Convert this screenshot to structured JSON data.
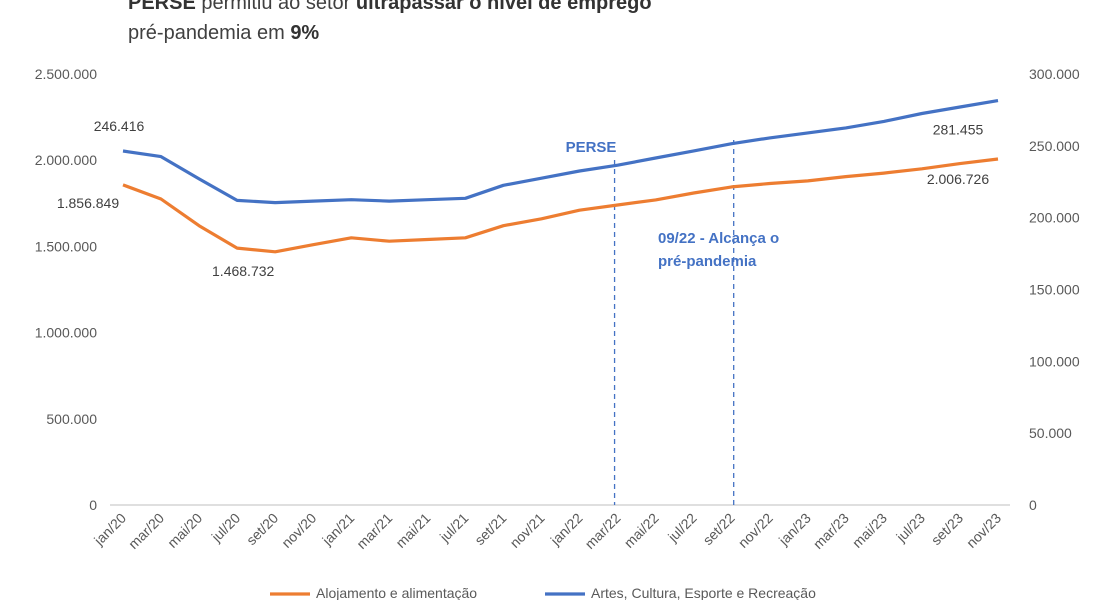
{
  "title": {
    "line1_bold1": "PERSE",
    "line1_text": " permitiu ao setor ",
    "line1_bold2": "ultrapassar o nível de emprego",
    "line2_text": "pré-pandemia  em ",
    "line2_bold": "9%"
  },
  "chart_data": {
    "type": "line",
    "x": [
      "jan/20",
      "mar/20",
      "mai/20",
      "jul/20",
      "set/20",
      "nov/20",
      "jan/21",
      "mar/21",
      "mai/21",
      "jul/21",
      "set/21",
      "nov/21",
      "jan/22",
      "mar/22",
      "mai/22",
      "jul/22",
      "set/22",
      "nov/22",
      "jan/23",
      "mar/23",
      "mai/23",
      "jul/23",
      "set/23",
      "nov/23"
    ],
    "y_left": {
      "range": [
        0,
        2500000
      ],
      "ticks": [
        "0",
        "500.000",
        "1.000.000",
        "1.500.000",
        "2.000.000",
        "2.500.000"
      ],
      "tick_values": [
        0,
        500000,
        1000000,
        1500000,
        2000000,
        2500000
      ]
    },
    "y_right": {
      "range": [
        0,
        300000
      ],
      "ticks": [
        "0",
        "50.000",
        "100.000",
        "150.000",
        "200.000",
        "250.000",
        "300.000"
      ],
      "tick_values": [
        0,
        50000,
        100000,
        150000,
        200000,
        250000,
        300000
      ]
    },
    "series": [
      {
        "name": "Alojamento e alimentação",
        "axis": "left",
        "color": "#ed7d31",
        "values": [
          1856849,
          1775000,
          1620000,
          1490000,
          1468732,
          1510000,
          1550000,
          1530000,
          1540000,
          1550000,
          1620000,
          1660000,
          1710000,
          1740000,
          1770000,
          1810000,
          1845000,
          1865000,
          1880000,
          1905000,
          1925000,
          1950000,
          1980000,
          2006726
        ]
      },
      {
        "name": "Artes, Cultura, Esporte e Recreação",
        "axis": "right",
        "color": "#4472c4",
        "values": [
          246416,
          242500,
          227000,
          212000,
          210500,
          211500,
          212500,
          211500,
          212500,
          213500,
          222500,
          227500,
          232500,
          236500,
          241500,
          246500,
          251500,
          255500,
          259000,
          262500,
          267000,
          272500,
          277000,
          281455
        ]
      }
    ],
    "data_labels": [
      {
        "text": "1.856.849",
        "series": 0,
        "index": 0
      },
      {
        "text": "1.468.732",
        "series": 0,
        "index": 4
      },
      {
        "text": "2.006.726",
        "series": 0,
        "index": 23
      },
      {
        "text": "246.416",
        "series": 1,
        "index": 0
      },
      {
        "text": "281.455",
        "series": 1,
        "index": 23
      }
    ],
    "annotations": [
      {
        "text": "PERSE",
        "at": "mar/22"
      },
      {
        "text": "09/22 - Alcança o",
        "text2": "pré-pandemia",
        "at": "set/22"
      }
    ],
    "grid": false,
    "legend_position": "bottom"
  }
}
